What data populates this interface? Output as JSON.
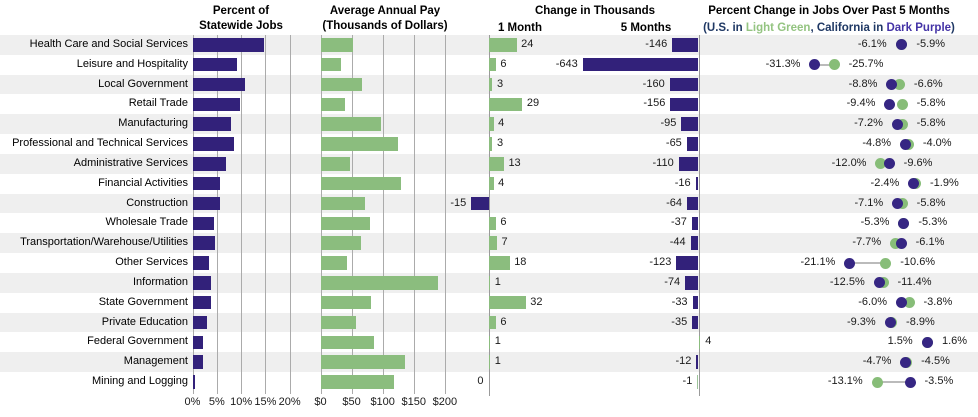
{
  "headers": {
    "panel1_line1": "Percent of",
    "panel1_line2": "Statewide Jobs",
    "panel2_line1": "Average Annual Pay",
    "panel2_line2": "(Thousands of Dollars)",
    "panel3_title": "Change in Thousands",
    "panel3_col1": "1 Month",
    "panel3_col2": "5 Months",
    "panel4_line1": "Percent Change in Jobs Over Past 5 Months",
    "panel4_line2_prefix": "(U.S. in ",
    "panel4_line2_green": "Light Green",
    "panel4_line2_mid": ", California in ",
    "panel4_line2_purple": "Dark Purple",
    "panel4_line2_suffix": ")"
  },
  "axis": {
    "panel1_ticks": [
      "0%",
      "5%",
      "10%",
      "15%",
      "20%"
    ],
    "panel2_ticks": [
      "$0",
      "$50",
      "$100",
      "$150",
      "$200"
    ]
  },
  "colors": {
    "purple_bar": "#32217A",
    "green_bar": "#8BBD7E",
    "ca_dot": "#362683",
    "us_dot": "#87BD78",
    "connector": "#BBBBBB",
    "gridline": "#ABABAB",
    "zero_line": "#9A9A9A",
    "stripe": "#EFEFEF",
    "mining_5m_bar": "#9CC49A"
  },
  "chart_data": [
    {
      "type": "bar",
      "title": "Percent of Statewide Jobs",
      "xlabel": "Percent of Statewide Jobs",
      "xlim": [
        0,
        20
      ],
      "tick_labels": [
        "0%",
        "5%",
        "10%",
        "15%",
        "20%"
      ],
      "categories": [
        "Health Care and Social Services",
        "Leisure and Hospitality",
        "Local Government",
        "Retail Trade",
        "Manufacturing",
        "Professional and Technical Services",
        "Administrative Services",
        "Financial Activities",
        "Construction",
        "Wholesale Trade",
        "Transportation/Warehouse/Utilities",
        "Other Services",
        "Information",
        "State Government",
        "Private Education",
        "Federal Government",
        "Management",
        "Mining and Logging"
      ],
      "values": [
        14.7,
        9.1,
        10.6,
        9.6,
        7.9,
        8.4,
        6.7,
        5.5,
        5.5,
        4.3,
        4.6,
        3.2,
        3.8,
        3.7,
        2.8,
        2.0,
        2.0,
        0.3
      ]
    },
    {
      "type": "bar",
      "title": "Average Annual Pay (Thousands of Dollars)",
      "xlim": [
        0,
        200
      ],
      "tick_labels": [
        "$0",
        "$50",
        "$100",
        "$150",
        "$200"
      ],
      "values": [
        52,
        32,
        66,
        38,
        97,
        123,
        47,
        129,
        71,
        79,
        65,
        42,
        188,
        81,
        56,
        86,
        135,
        118
      ]
    },
    {
      "type": "bar",
      "title": "Change in Thousands",
      "series": [
        {
          "name": "1 Month",
          "values": [
            24,
            6,
            3,
            29,
            4,
            3,
            13,
            4,
            -15,
            6,
            7,
            18,
            1,
            32,
            6,
            1,
            1,
            0
          ]
        },
        {
          "name": "5 Months",
          "values": [
            -146,
            -643,
            -160,
            -156,
            -95,
            -65,
            -110,
            -16,
            -64,
            -37,
            -44,
            -123,
            -74,
            -33,
            -35,
            4,
            -12,
            -1
          ]
        }
      ]
    },
    {
      "type": "scatter",
      "title": "Percent Change in Jobs Over Past 5 Months",
      "legend": [
        "U.S. in Light Green",
        "California in Dark Purple"
      ],
      "series": [
        {
          "name": "U.S.",
          "values": [
            -5.9,
            -25.7,
            -6.6,
            -5.8,
            -5.8,
            -4.0,
            -12.0,
            -1.9,
            -5.8,
            -5.3,
            -7.7,
            -10.6,
            -11.4,
            -3.8,
            -8.9,
            1.6,
            -4.5,
            -13.1
          ]
        },
        {
          "name": "California",
          "values": [
            -6.1,
            -31.3,
            -8.8,
            -9.4,
            -7.2,
            -4.8,
            -9.6,
            -2.4,
            -7.1,
            -5.3,
            -6.1,
            -21.1,
            -12.5,
            -6.0,
            -9.3,
            1.5,
            -4.7,
            -3.5
          ]
        }
      ]
    }
  ]
}
